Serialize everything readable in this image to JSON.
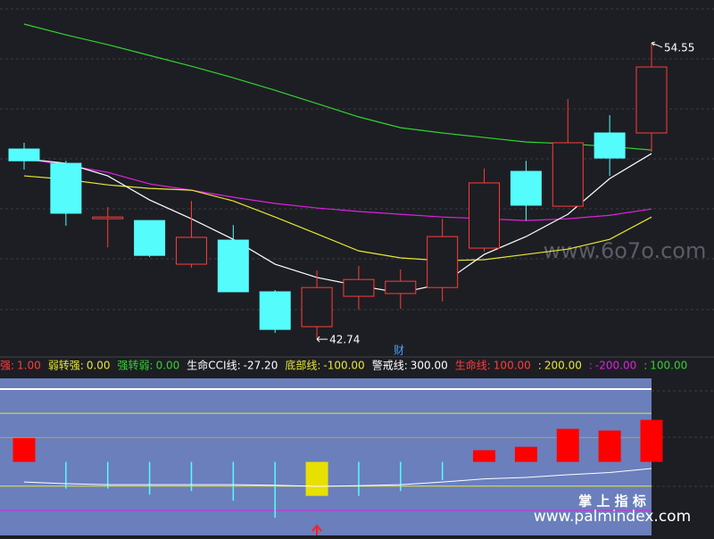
{
  "chart_data": [
    {
      "type": "candlestick",
      "ylim": [
        42.21,
        56.26
      ],
      "up_color": "#ff3c3c",
      "down_color": "#54fcfc",
      "open": [
        50.32,
        49.75,
        47.54,
        47.47,
        45.73,
        46.69,
        44.63,
        43.24,
        44.45,
        44.56,
        44.8,
        46.37,
        49.43,
        48.04,
        50.96,
        50.96
      ],
      "high": [
        50.57,
        49.85,
        48.01,
        47.47,
        48.25,
        47.29,
        44.7,
        45.48,
        45.66,
        45.52,
        47.54,
        49.54,
        49.85,
        52.31,
        51.67,
        54.55
      ],
      "low": [
        49.5,
        47.26,
        46.4,
        46.01,
        45.59,
        44.63,
        42.99,
        42.74,
        43.92,
        43.95,
        44.24,
        46.23,
        47.47,
        48.04,
        49.25,
        50.21
      ],
      "close": [
        49.85,
        47.76,
        47.61,
        46.08,
        46.8,
        44.63,
        43.13,
        44.8,
        45.12,
        45.05,
        46.83,
        48.97,
        48.08,
        50.57,
        49.96,
        53.59
      ],
      "lines": [
        {
          "color": "#32d232",
          "values": [
            55.3,
            54.87,
            54.48,
            54.05,
            53.62,
            53.16,
            52.66,
            52.13,
            51.6,
            51.17,
            50.96,
            50.78,
            50.6,
            50.53,
            50.42,
            50.28
          ]
        },
        {
          "color": "#e020e0",
          "values": [
            49.93,
            49.68,
            49.39,
            48.93,
            48.68,
            48.4,
            48.15,
            47.97,
            47.83,
            47.72,
            47.61,
            47.54,
            47.47,
            47.54,
            47.68,
            47.93
          ]
        },
        {
          "color": "#e8e832",
          "values": [
            49.25,
            49.11,
            48.89,
            48.75,
            48.68,
            48.25,
            47.61,
            46.94,
            46.26,
            45.98,
            45.87,
            45.91,
            46.12,
            46.33,
            46.72,
            47.61
          ]
        },
        {
          "color": "#ffffff",
          "values": [
            49.93,
            49.75,
            49.25,
            48.29,
            47.54,
            46.72,
            45.73,
            45.2,
            44.87,
            44.59,
            44.95,
            46.12,
            46.83,
            47.72,
            49.14,
            50.14
          ]
        }
      ],
      "high_label": "54.55",
      "low_label": "42.74",
      "marker": "财"
    },
    {
      "type": "oscillator",
      "ylim": [
        -303,
        344
      ],
      "legend": [
        {
          "name": "强:",
          "value": "1.00",
          "color": "#ff3c3c"
        },
        {
          "name": "弱转强:",
          "value": "0.00",
          "color": "#e8e832"
        },
        {
          "name": "强转弱:",
          "value": "0.00",
          "color": "#32d232"
        },
        {
          "name": "生命CCI线:",
          "value": "-27.20",
          "color": "#ffffff"
        },
        {
          "name": "底部线:",
          "value": "-100.00",
          "color": "#e8e832"
        },
        {
          "name": "警戒线:",
          "value": "300.00",
          "color": "#ffffff"
        },
        {
          "name": "生命线:",
          "value": "100.00",
          "color": "#ff3c3c"
        },
        {
          "name": ":",
          "value": "200.00",
          "color": "#e8e832"
        },
        {
          "name": ":",
          "value": "-200.00",
          "color": "#e020e0"
        },
        {
          "name": ":",
          "value": "100.00",
          "color": "#32d232"
        }
      ],
      "levels": [
        {
          "value": 300,
          "color": "#ffffff"
        },
        {
          "value": 200,
          "color": "#e8e832"
        },
        {
          "value": 100,
          "color": "#b8a830"
        },
        {
          "value": -100,
          "color": "#e8e832"
        },
        {
          "value": -200,
          "color": "#e020e0"
        }
      ],
      "values": [
        98,
        -110,
        -110,
        -135,
        -120,
        -160,
        -230,
        -140,
        -140,
        -120,
        -75,
        48,
        62,
        136,
        129,
        173
      ],
      "colors": [
        "#ff0000",
        "#54fcfc",
        "#54fcfc",
        "#54fcfc",
        "#54fcfc",
        "#54fcfc",
        "#54fcfc",
        "#e8e000",
        "#54fcfc",
        "#54fcfc",
        "#54fcfc",
        "#ff0000",
        "#ff0000",
        "#ff0000",
        "#ff0000",
        "#ff0000"
      ],
      "cci": {
        "color": "#ffffff",
        "values": [
          -83,
          -90,
          -94,
          -94,
          -94,
          -94,
          -96,
          -101,
          -98,
          -94,
          -83,
          -70,
          -64,
          -53,
          -44,
          -27.2
        ]
      }
    }
  ],
  "watermarks": {
    "site1": "www.6o7o.com",
    "brand": "掌 上 指 标",
    "site2": "www.palmindex.com"
  }
}
